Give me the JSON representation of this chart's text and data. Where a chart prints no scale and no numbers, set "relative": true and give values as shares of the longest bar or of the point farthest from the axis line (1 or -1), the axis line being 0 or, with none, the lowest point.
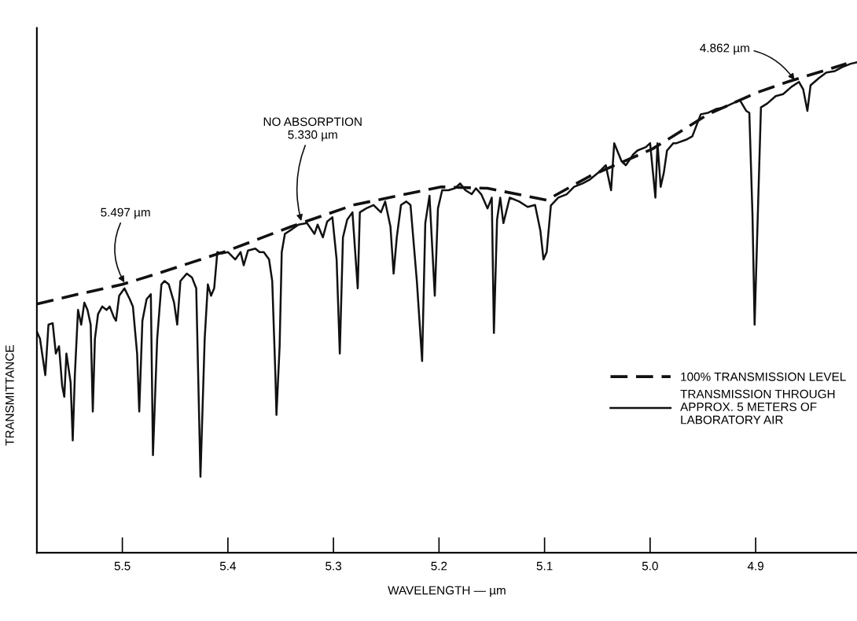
{
  "chart_data": {
    "type": "line",
    "relative": true,
    "xlabel": "WAVELENGTH — µm",
    "ylabel": "TRANSMITTANCE",
    "xlim": [
      5.581,
      4.804
    ],
    "xticks": [
      5.5,
      5.4,
      5.3,
      5.2,
      5.1,
      {
        "value": 5.0,
        "label": "5.0"
      },
      4.9
    ],
    "tick_labels": "x",
    "grid": false,
    "legend": "bottom right",
    "series": [
      {
        "name": "100% TRANSMISSION LEVEL",
        "color": "#111111",
        "line_style": "dashed",
        "x": [
          5.581,
          5.542,
          5.5,
          5.467,
          5.4,
          5.34,
          5.281,
          5.198,
          5.154,
          5.098,
          5.057,
          4.998,
          4.945,
          4.899,
          4.87,
          4.814
        ],
        "values": [
          0.507,
          0.527,
          0.547,
          0.569,
          0.616,
          0.665,
          0.709,
          0.746,
          0.743,
          0.719,
          0.768,
          0.823,
          0.894,
          0.938,
          0.96,
          0.997
        ]
      },
      {
        "name": "TRANSMISSION THROUGH\nAPPROX. 5 METERS OF\nLABORATORY AIR",
        "color": "#111111",
        "line_style": "solid",
        "x": [
          5.581,
          5.578,
          5.573,
          5.57,
          5.566,
          5.563,
          5.56,
          5.557,
          5.555,
          5.553,
          5.549,
          5.547,
          5.545,
          5.542,
          5.539,
          5.536,
          5.533,
          5.53,
          5.528,
          5.526,
          5.523,
          5.519,
          5.515,
          5.512,
          5.508,
          5.506,
          5.503,
          5.498,
          5.493,
          5.49,
          5.486,
          5.484,
          5.481,
          5.477,
          5.473,
          5.471,
          5.467,
          5.463,
          5.46,
          5.456,
          5.451,
          5.448,
          5.445,
          5.439,
          5.434,
          5.43,
          5.426,
          5.422,
          5.419,
          5.416,
          5.413,
          5.41,
          5.406,
          5.4,
          5.393,
          5.388,
          5.385,
          5.381,
          5.374,
          5.37,
          5.366,
          5.361,
          5.358,
          5.355,
          5.354,
          5.351,
          5.349,
          5.346,
          5.339,
          5.333,
          5.325,
          5.318,
          5.315,
          5.31,
          5.306,
          5.301,
          5.297,
          5.294,
          5.291,
          5.287,
          5.282,
          5.277,
          5.275,
          5.269,
          5.262,
          5.255,
          5.251,
          5.246,
          5.243,
          5.24,
          5.236,
          5.231,
          5.227,
          5.221,
          5.216,
          5.213,
          5.209,
          5.204,
          5.201,
          5.197,
          5.191,
          5.185,
          5.18,
          5.175,
          5.169,
          5.165,
          5.16,
          5.154,
          5.15,
          5.148,
          5.145,
          5.142,
          5.139,
          5.133,
          5.124,
          5.116,
          5.109,
          5.104,
          5.101,
          5.098,
          5.094,
          5.087,
          5.079,
          5.072,
          5.064,
          5.057,
          5.049,
          5.042,
          5.037,
          5.034,
          5.027,
          5.023,
          5.016,
          5.012,
          5.004,
          5.0,
          4.995,
          4.993,
          4.99,
          4.987,
          4.984,
          4.978,
          4.975,
          4.966,
          4.96,
          4.952,
          4.945,
          4.937,
          4.93,
          4.922,
          4.915,
          4.909,
          4.906,
          4.903,
          4.901,
          4.898,
          4.895,
          4.889,
          4.881,
          4.874,
          4.866,
          4.859,
          4.855,
          4.851,
          4.848,
          4.84,
          4.833,
          4.825,
          4.818,
          4.81,
          4.804
        ],
        "values": [
          0.451,
          0.436,
          0.362,
          0.465,
          0.468,
          0.406,
          0.421,
          0.34,
          0.318,
          0.406,
          0.347,
          0.229,
          0.362,
          0.495,
          0.465,
          0.51,
          0.495,
          0.465,
          0.288,
          0.436,
          0.487,
          0.502,
          0.495,
          0.502,
          0.48,
          0.473,
          0.524,
          0.539,
          0.517,
          0.502,
          0.406,
          0.288,
          0.473,
          0.517,
          0.527,
          0.199,
          0.436,
          0.547,
          0.554,
          0.547,
          0.51,
          0.465,
          0.554,
          0.569,
          0.561,
          0.539,
          0.155,
          0.436,
          0.547,
          0.524,
          0.539,
          0.613,
          0.61,
          0.613,
          0.598,
          0.613,
          0.586,
          0.616,
          0.62,
          0.613,
          0.613,
          0.598,
          0.554,
          0.362,
          0.281,
          0.421,
          0.613,
          0.65,
          0.66,
          0.669,
          0.672,
          0.65,
          0.669,
          0.643,
          0.675,
          0.684,
          0.598,
          0.406,
          0.643,
          0.679,
          0.694,
          0.539,
          0.694,
          0.702,
          0.709,
          0.694,
          0.716,
          0.665,
          0.569,
          0.643,
          0.709,
          0.716,
          0.709,
          0.554,
          0.391,
          0.672,
          0.728,
          0.524,
          0.702,
          0.739,
          0.739,
          0.743,
          0.753,
          0.739,
          0.731,
          0.743,
          0.731,
          0.702,
          0.724,
          0.448,
          0.679,
          0.724,
          0.672,
          0.724,
          0.716,
          0.705,
          0.709,
          0.657,
          0.598,
          0.613,
          0.708,
          0.724,
          0.731,
          0.746,
          0.753,
          0.761,
          0.775,
          0.79,
          0.739,
          0.835,
          0.798,
          0.79,
          0.812,
          0.82,
          0.827,
          0.835,
          0.724,
          0.835,
          0.746,
          0.775,
          0.82,
          0.835,
          0.835,
          0.842,
          0.849,
          0.894,
          0.897,
          0.905,
          0.908,
          0.916,
          0.923,
          0.901,
          0.897,
          0.687,
          0.465,
          0.687,
          0.908,
          0.916,
          0.931,
          0.935,
          0.95,
          0.96,
          0.945,
          0.901,
          0.953,
          0.968,
          0.979,
          0.982,
          0.99,
          0.997,
          1.0
        ]
      }
    ],
    "annotations": [
      {
        "text": "5.497 µm",
        "x": 5.497,
        "y": 0.547
      },
      {
        "text": "NO ABSORPTION\n5.330 µm",
        "x": 5.33,
        "y": 0.672
      },
      {
        "text": "4.862 µm",
        "x": 4.862,
        "y": 0.96
      }
    ]
  }
}
